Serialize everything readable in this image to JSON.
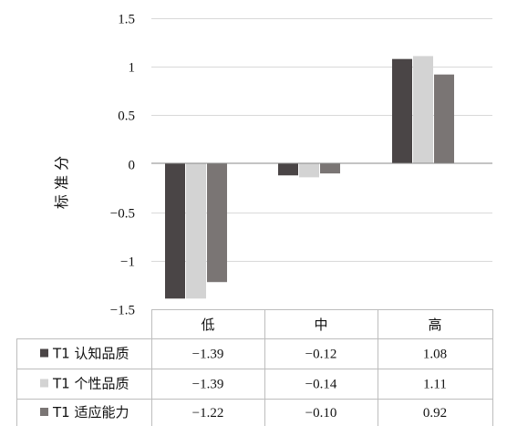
{
  "chart_data": {
    "type": "bar",
    "ylabel": "标 准 分",
    "ylim": [
      -1.5,
      1.5
    ],
    "yticks": [
      1.5,
      1,
      0.5,
      0,
      -0.5,
      -1,
      -1.5
    ],
    "ytick_labels": [
      "1.5",
      "1",
      "0.5",
      "0",
      "−0.5",
      "−1",
      "−1.5"
    ],
    "grid": true,
    "categories": [
      "低",
      "中",
      "高"
    ],
    "series": [
      {
        "name": "T1 认知品质",
        "color": "#4a4546",
        "values": [
          -1.39,
          -0.12,
          1.08
        ],
        "value_labels": [
          "−1.39",
          "−0.12",
          "1.08"
        ]
      },
      {
        "name": "T1 个性品质",
        "color": "#d3d3d3",
        "values": [
          -1.39,
          -0.14,
          1.11
        ],
        "value_labels": [
          "−1.39",
          "−0.14",
          "1.11"
        ]
      },
      {
        "name": "T1 适应能力",
        "color": "#7a7574",
        "values": [
          -1.22,
          -0.1,
          0.92
        ],
        "value_labels": [
          "−1.22",
          "−0.10",
          "0.92"
        ]
      }
    ],
    "legend_placement": "data-table"
  }
}
